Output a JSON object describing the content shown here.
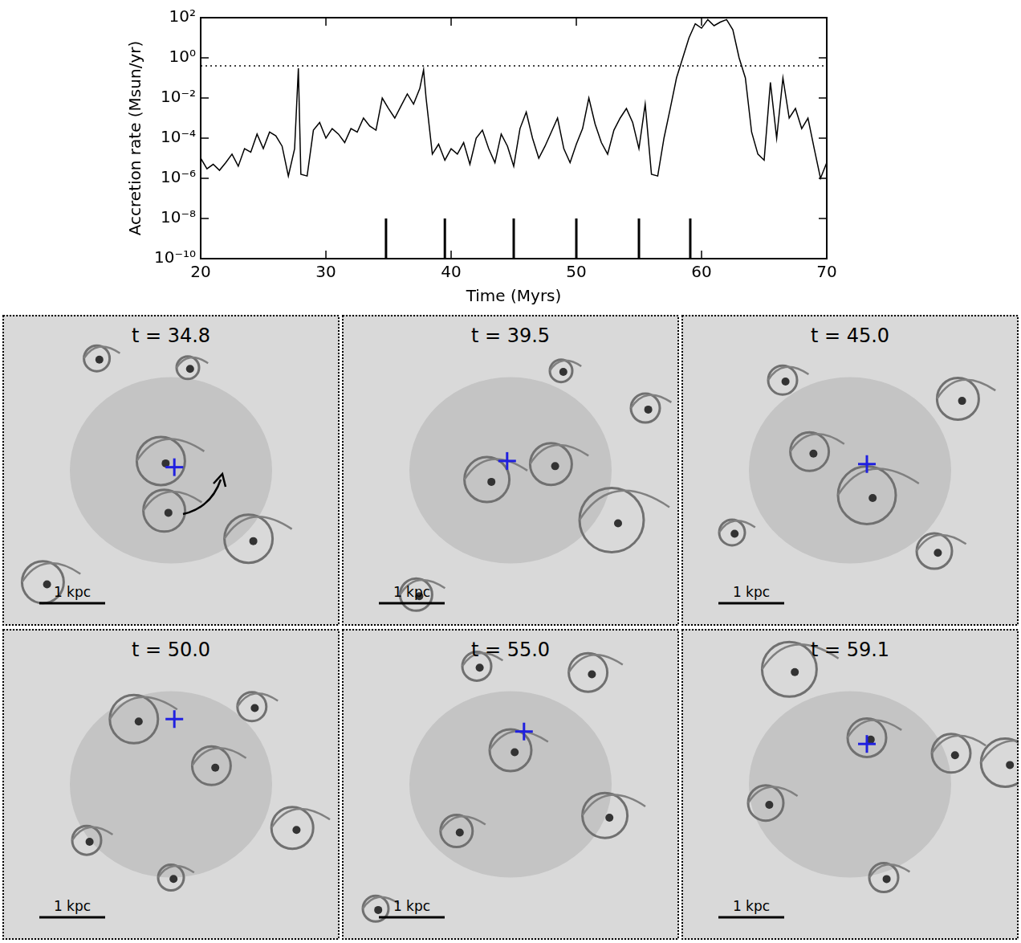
{
  "chart_data": {
    "type": "line",
    "x_label": "Time (Myrs)",
    "y_label": "Accretion rate (Msun/yr)",
    "log": "y",
    "grid": false,
    "color": "#000000",
    "xlim": [
      20,
      70
    ],
    "xticks": [
      20,
      30,
      40,
      50,
      60,
      70
    ],
    "ylim": [
      1e-10,
      100
    ],
    "yticks": [
      {
        "value": 1e-10,
        "label": "10⁻¹⁰"
      },
      {
        "value": 1e-08,
        "label": "10⁻⁸"
      },
      {
        "value": 1e-06,
        "label": "10⁻⁶"
      },
      {
        "value": 0.0001,
        "label": "10⁻⁴"
      },
      {
        "value": 0.01,
        "label": "10⁻²"
      },
      {
        "value": 1,
        "label": "10⁰"
      },
      {
        "value": 100,
        "label": "10²"
      }
    ],
    "reference_line": 0.4,
    "snapshot_marks": {
      "x": [
        34.8,
        39.5,
        45.0,
        50.0,
        55.0,
        59.1
      ],
      "top": 1e-08
    },
    "x": [
      20,
      20.5,
      21,
      21.5,
      22,
      22.5,
      23,
      23.5,
      24,
      24.5,
      25,
      25.5,
      26,
      26.5,
      27,
      27.5,
      27.8,
      28,
      28.5,
      29,
      29.5,
      30,
      30.5,
      31,
      31.5,
      32,
      32.5,
      33,
      33.5,
      34,
      34.5,
      35,
      35.5,
      36,
      36.5,
      37,
      37.5,
      37.8,
      38,
      38.5,
      39,
      39.5,
      40,
      40.5,
      41,
      41.5,
      42,
      42.5,
      43,
      43.5,
      44,
      44.5,
      45,
      45.5,
      46,
      46.5,
      47,
      47.5,
      48,
      48.5,
      49,
      49.5,
      50,
      50.5,
      51,
      51.5,
      52,
      52.5,
      53,
      53.5,
      54,
      54.5,
      55,
      55.5,
      56,
      56.5,
      57,
      57.5,
      58,
      58.5,
      59,
      59.5,
      60,
      60.5,
      61,
      61.5,
      62,
      62.5,
      63,
      63.5,
      64,
      64.5,
      65,
      65.5,
      66,
      66.5,
      67,
      67.5,
      68,
      68.5,
      69,
      69.5,
      70
    ],
    "values": [
      1e-05,
      3e-06,
      5e-06,
      2.5e-06,
      6e-06,
      1.6e-05,
      4e-06,
      3e-05,
      2e-05,
      0.00016,
      3e-05,
      0.0002,
      0.00013,
      4e-05,
      1.3e-06,
      3e-05,
      0.3,
      1.6e-06,
      1.3e-06,
      0.00025,
      0.0006,
      0.0001,
      0.0003,
      0.00016,
      6e-05,
      0.0003,
      0.0002,
      0.001,
      0.0004,
      0.00025,
      0.01,
      0.003,
      0.001,
      0.004,
      0.016,
      0.005,
      0.03,
      0.25,
      0.01,
      1.6e-05,
      5e-05,
      8e-06,
      3e-05,
      1.6e-05,
      6e-05,
      5e-06,
      0.0001,
      0.00025,
      3e-05,
      6e-06,
      0.00016,
      4e-05,
      4e-06,
      0.0003,
      0.002,
      0.0001,
      1e-05,
      4e-05,
      0.0002,
      0.001,
      3e-05,
      6e-06,
      5e-05,
      0.0003,
      0.01,
      0.0005,
      6e-05,
      1.6e-05,
      0.00025,
      0.001,
      0.003,
      0.0006,
      3e-05,
      0.005,
      1.6e-06,
      1.3e-06,
      0.0001,
      0.003,
      0.1,
      1,
      10,
      50,
      30,
      80,
      40,
      60,
      80,
      25,
      1,
      0.1,
      0.0002,
      1.6e-05,
      8e-06,
      0.06,
      0.0001,
      0.1,
      0.001,
      0.003,
      0.0003,
      0.001,
      3e-05,
      1e-06,
      6e-06
    ]
  },
  "panels": {
    "titles": [
      "t = 34.8",
      "t = 39.5",
      "t = 45.0",
      "t = 50.0",
      "t = 55.0",
      "t = 59.1"
    ],
    "scale_bar_label": "1 kpc"
  }
}
